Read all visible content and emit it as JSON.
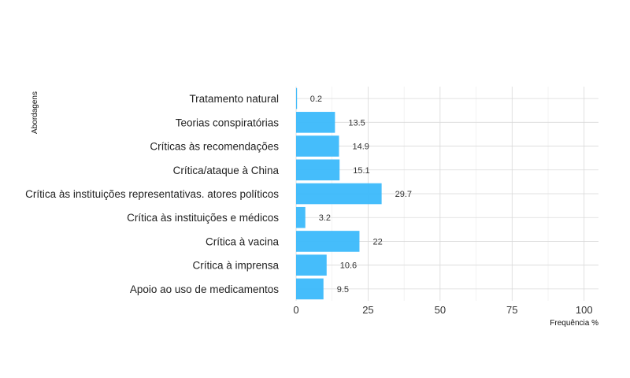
{
  "chart_data": {
    "type": "bar",
    "orientation": "horizontal",
    "categories": [
      "Tratamento natural",
      "Teorias conspiratórias",
      "Críticas às recomendações",
      "Crítica/ataque à China",
      "Crítica às instituições representativas. atores políticos",
      "Crítica às instituições e médicos",
      "Crítica à vacina",
      "Crítica à imprensa",
      "Apoio ao uso de medicamentos"
    ],
    "values": [
      0.2,
      13.5,
      14.9,
      15.1,
      29.7,
      3.2,
      22,
      10.6,
      9.5
    ],
    "data_labels": [
      "0.2",
      "13.5",
      "14.9",
      "15.1",
      "29.7",
      "3.2",
      "22",
      "10.6",
      "9.5"
    ],
    "xlabel": "Frequência %",
    "ylabel": "Abordagens",
    "xlim": [
      0,
      105
    ],
    "xticks": [
      0,
      25,
      50,
      75,
      100
    ],
    "grid": true,
    "bar_color": "#3bb9fb"
  }
}
